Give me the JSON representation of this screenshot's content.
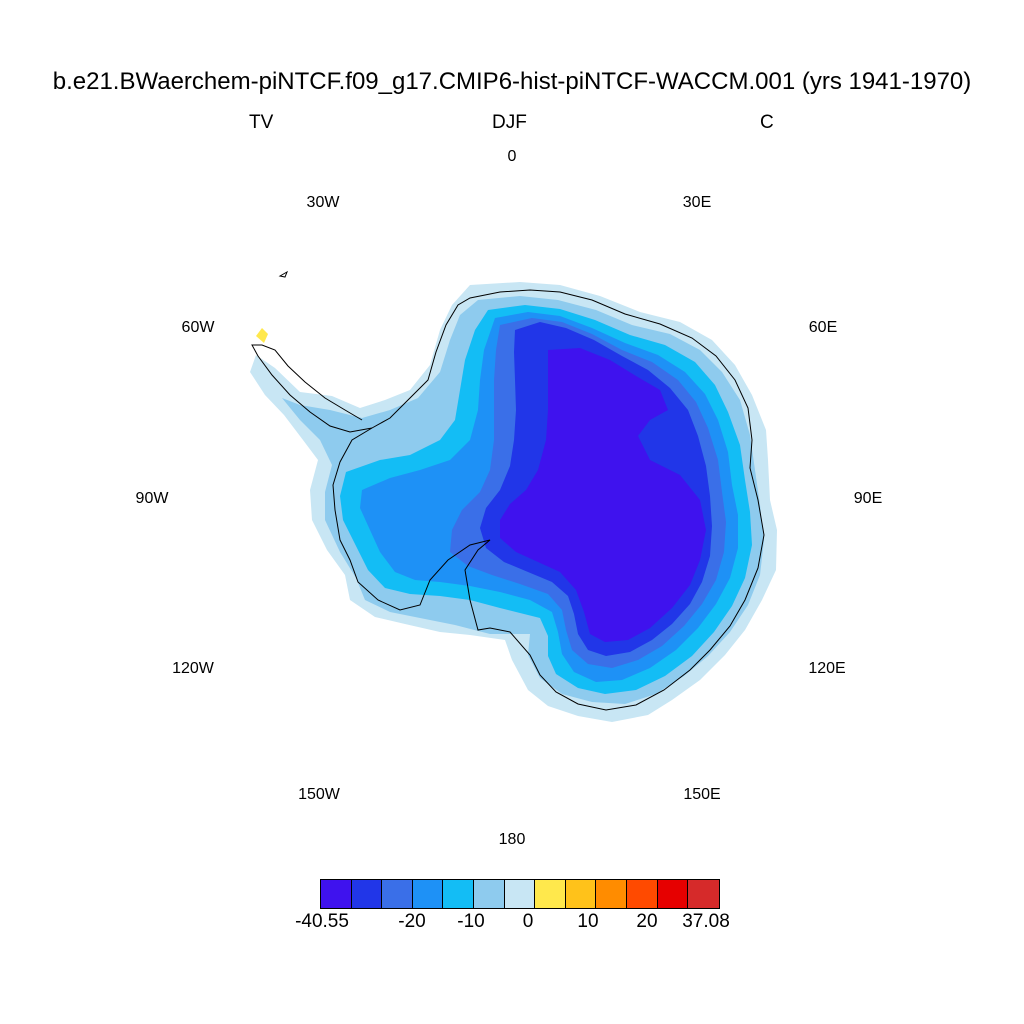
{
  "title": "b.e21.BWaerchem-piNTCF.f09_g17.CMIP6-hist-piNTCF-WACCM.001 (yrs 1941-1970)",
  "subtitle": {
    "left": "TV",
    "center": "DJF",
    "right": "C"
  },
  "map": {
    "projection": "south-polar-stereographic",
    "region": "Antarctica",
    "lon_labels": {
      "0": "0",
      "30E": "30E",
      "60E": "60E",
      "90E": "90E",
      "120E": "120E",
      "150E": "150E",
      "180": "180",
      "150W": "150W",
      "120W": "120W",
      "90W": "90W",
      "60W": "60W",
      "30W": "30W"
    }
  },
  "colorbar": {
    "colors": [
      "#3f12ee",
      "#2136e8",
      "#3a6fe8",
      "#1e91f6",
      "#13bdf5",
      "#8ecbee",
      "#c8e6f4",
      "#ffe84c",
      "#ffc21a",
      "#ff8c00",
      "#ff4a00",
      "#e60000",
      "#d62a2a"
    ],
    "labels": [
      "-40.55",
      "-20",
      "-10",
      "0",
      "10",
      "20",
      "37.08"
    ]
  }
}
